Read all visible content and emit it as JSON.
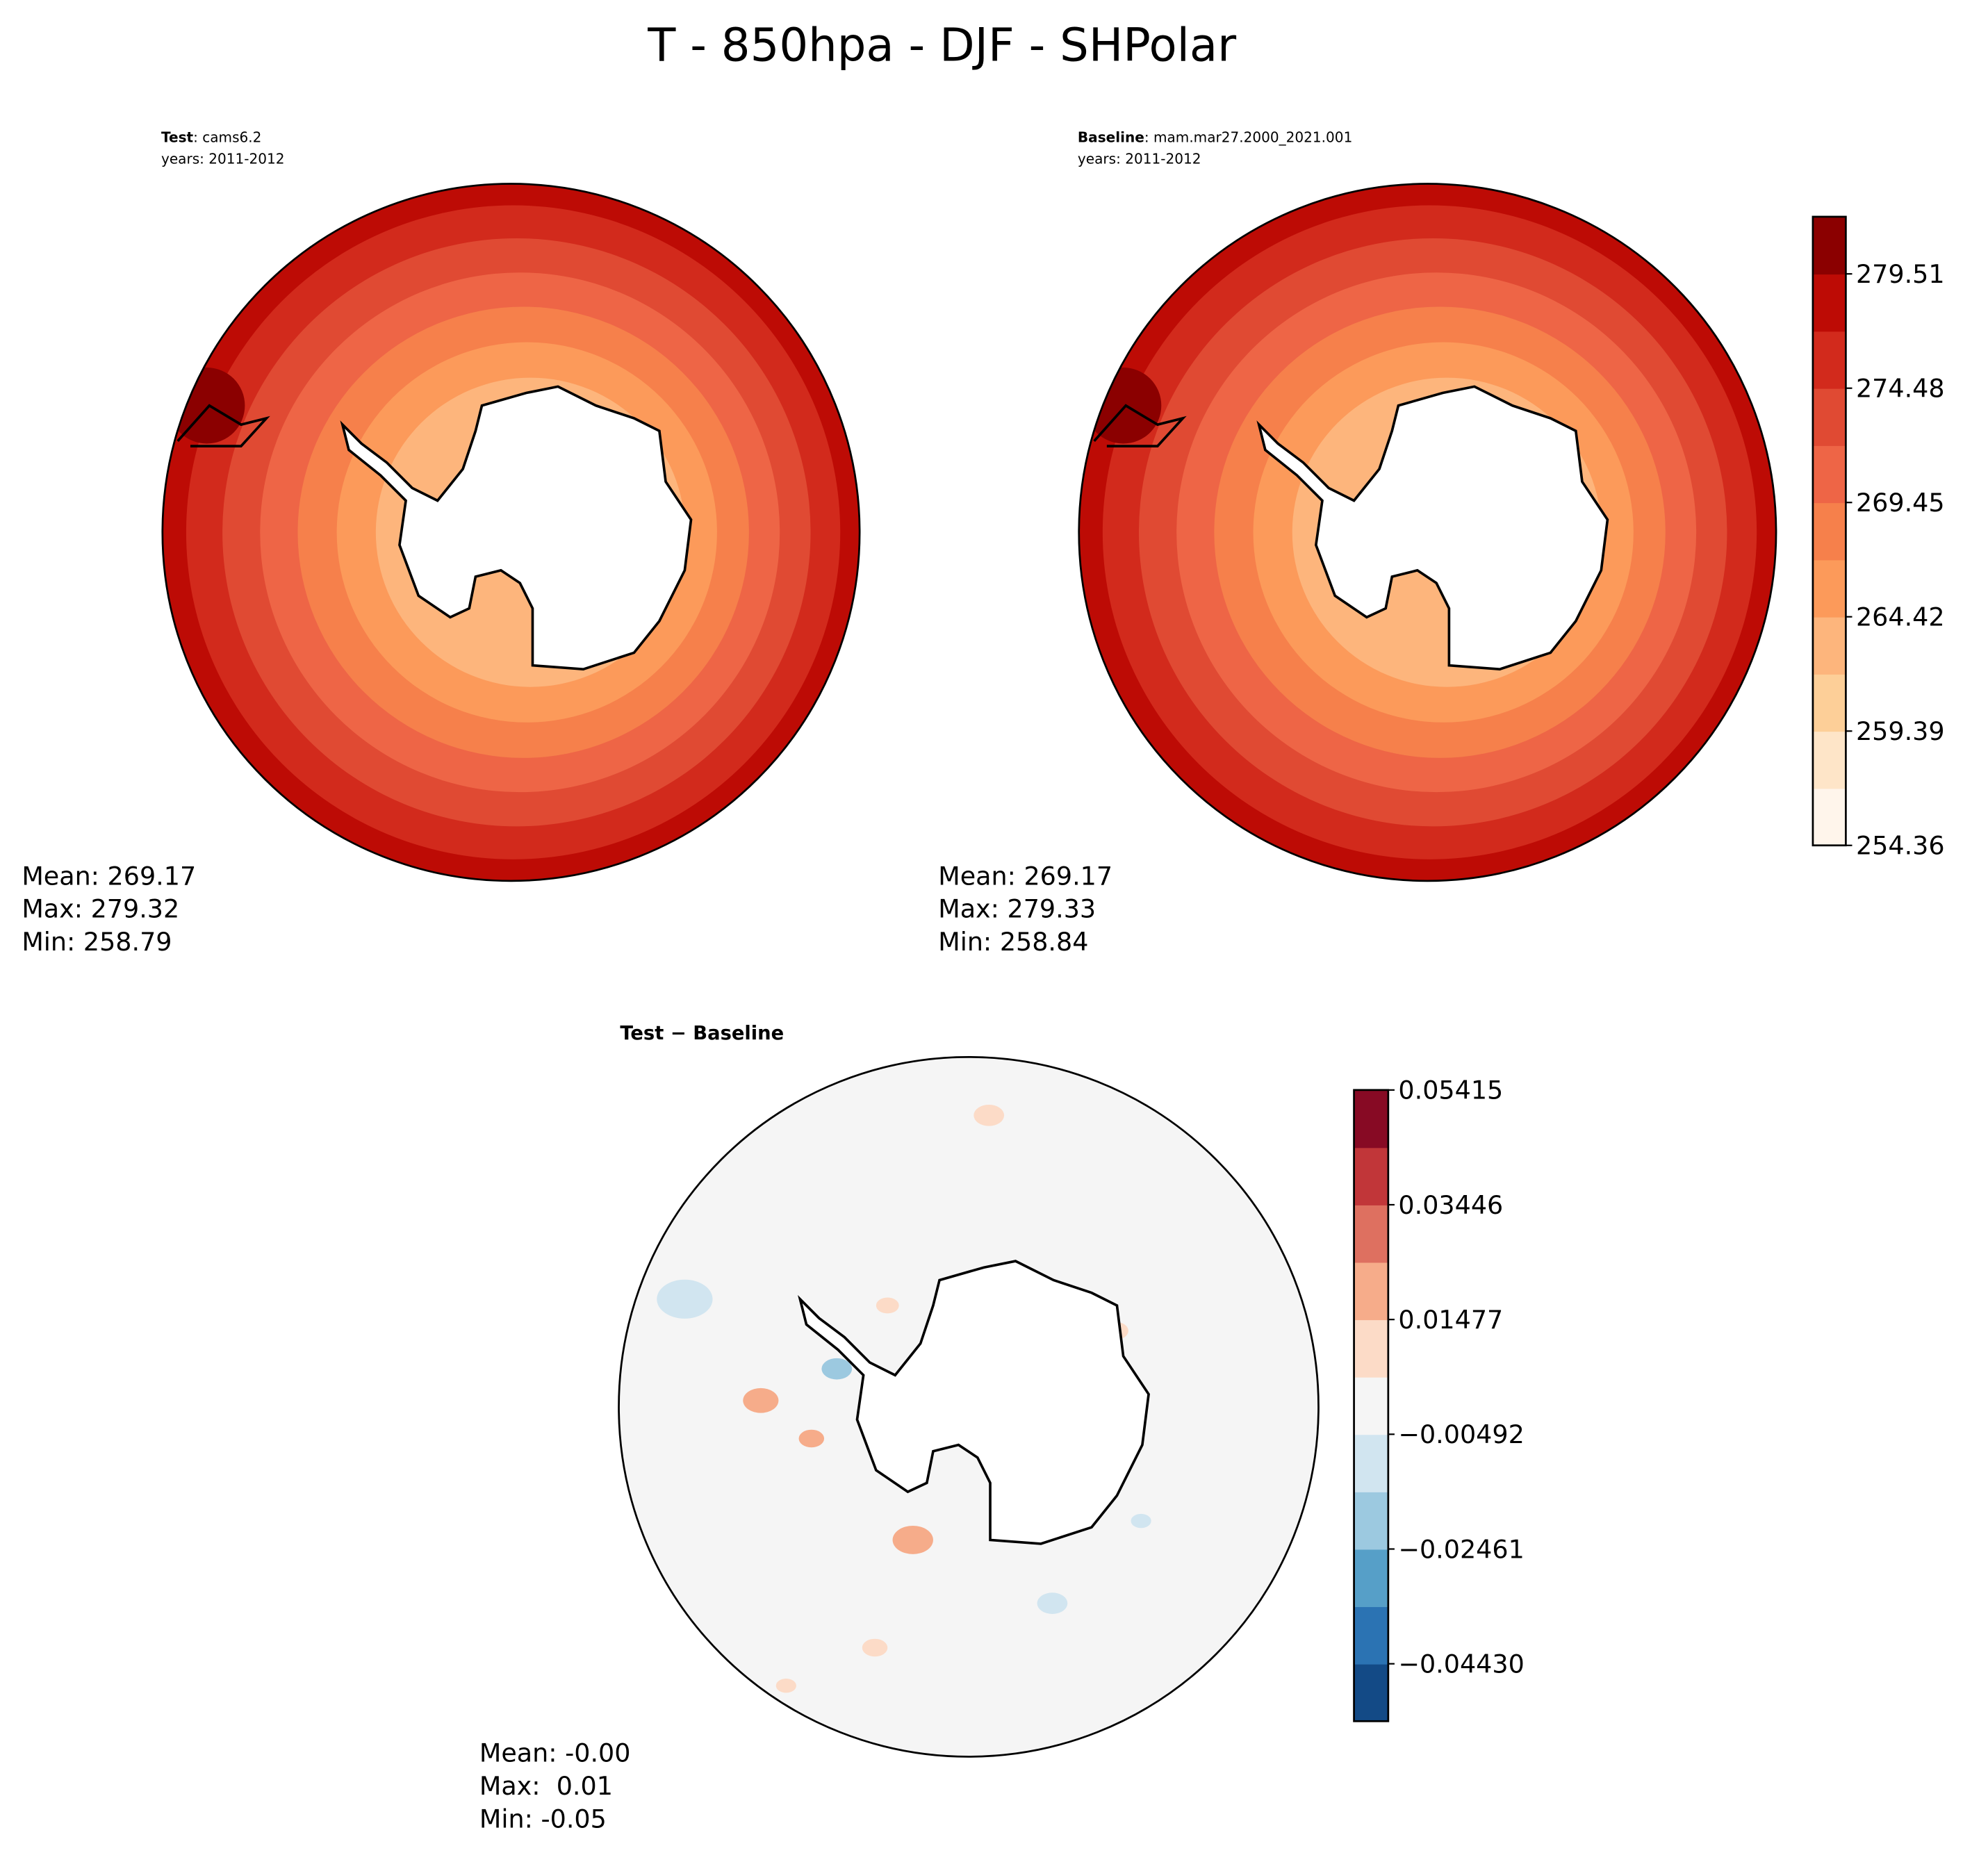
{
  "title": "T - 850hpa - DJF - SHPolar",
  "panels": [
    {
      "name": "Test",
      "label": ": cams6.2",
      "years": "years: 2011-2012",
      "stats": [
        "Mean: 269.17",
        "Max: 279.32",
        "Min: 258.79"
      ]
    },
    {
      "name": "Baseline",
      "label": ": mam.mar27.2000_2021.001",
      "years": "years: 2011-2012",
      "stats": [
        "Mean: 269.17",
        "Max: 279.33",
        "Min: 258.84"
      ]
    }
  ],
  "difference": {
    "title": "Test − Baseline",
    "stats": [
      "Mean: -0.00",
      "Max:  0.01",
      "Min: -0.05"
    ]
  },
  "colorbars": [
    {
      "lim": [
        254.36,
        282.025
      ],
      "colors": [
        "#fff5eb",
        "#fee5c8",
        "#fdcf98",
        "#fdb57c",
        "#fc9a5a",
        "#f6804b",
        "#ee6546",
        "#e04a33",
        "#d22a1c",
        "#bd0b05",
        "#8b0000"
      ],
      "ticks": [
        254.36,
        259.39,
        264.42,
        269.45,
        274.48,
        279.51
      ]
    },
    {
      "lim": [
        -0.05415,
        0.05415
      ],
      "colors": [
        "#134a86",
        "#2b73b3",
        "#569fc8",
        "#9cc9e0",
        "#d1e5f0",
        "#f5f5f5",
        "#fcdbc7",
        "#f6ac8a",
        "#de7060",
        "#c13639",
        "#870a24"
      ],
      "ticks": [
        {
          "value": -0.0443,
          "label": "−0.04430"
        },
        {
          "value": -0.02461,
          "label": "−0.02461"
        },
        {
          "value": -0.00492,
          "label": "−0.00492"
        },
        0.01477,
        0.03446,
        0.05415
      ]
    }
  ]
}
